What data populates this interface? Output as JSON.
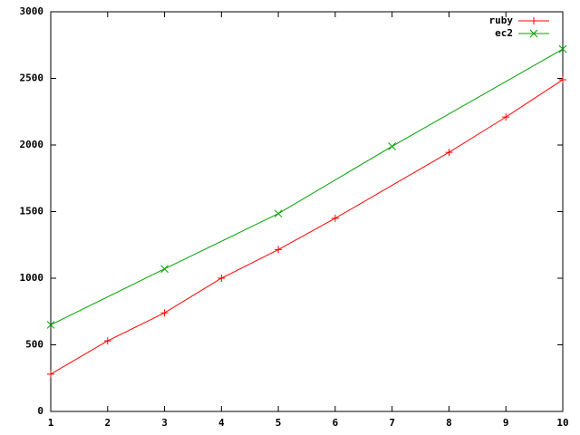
{
  "chart_data": {
    "type": "line",
    "series": [
      {
        "name": "ruby",
        "color": "#ff0000",
        "marker": "plus",
        "x": [
          1,
          2,
          3,
          4,
          5,
          6,
          8,
          9,
          10
        ],
        "values": [
          280,
          530,
          740,
          1000,
          1215,
          1450,
          1945,
          2210,
          2490
        ]
      },
      {
        "name": "ec2",
        "color": "#00a000",
        "marker": "cross",
        "x": [
          1,
          3,
          5,
          7,
          10
        ],
        "values": [
          650,
          1070,
          1485,
          1990,
          2720
        ]
      }
    ],
    "xlim": [
      1,
      10
    ],
    "xticks": [
      1,
      2,
      3,
      4,
      5,
      6,
      7,
      8,
      9,
      10
    ],
    "ylim": [
      0,
      3000
    ],
    "yticks": [
      0,
      500,
      1000,
      1500,
      2000,
      2500,
      3000
    ],
    "legend": "top-right"
  }
}
